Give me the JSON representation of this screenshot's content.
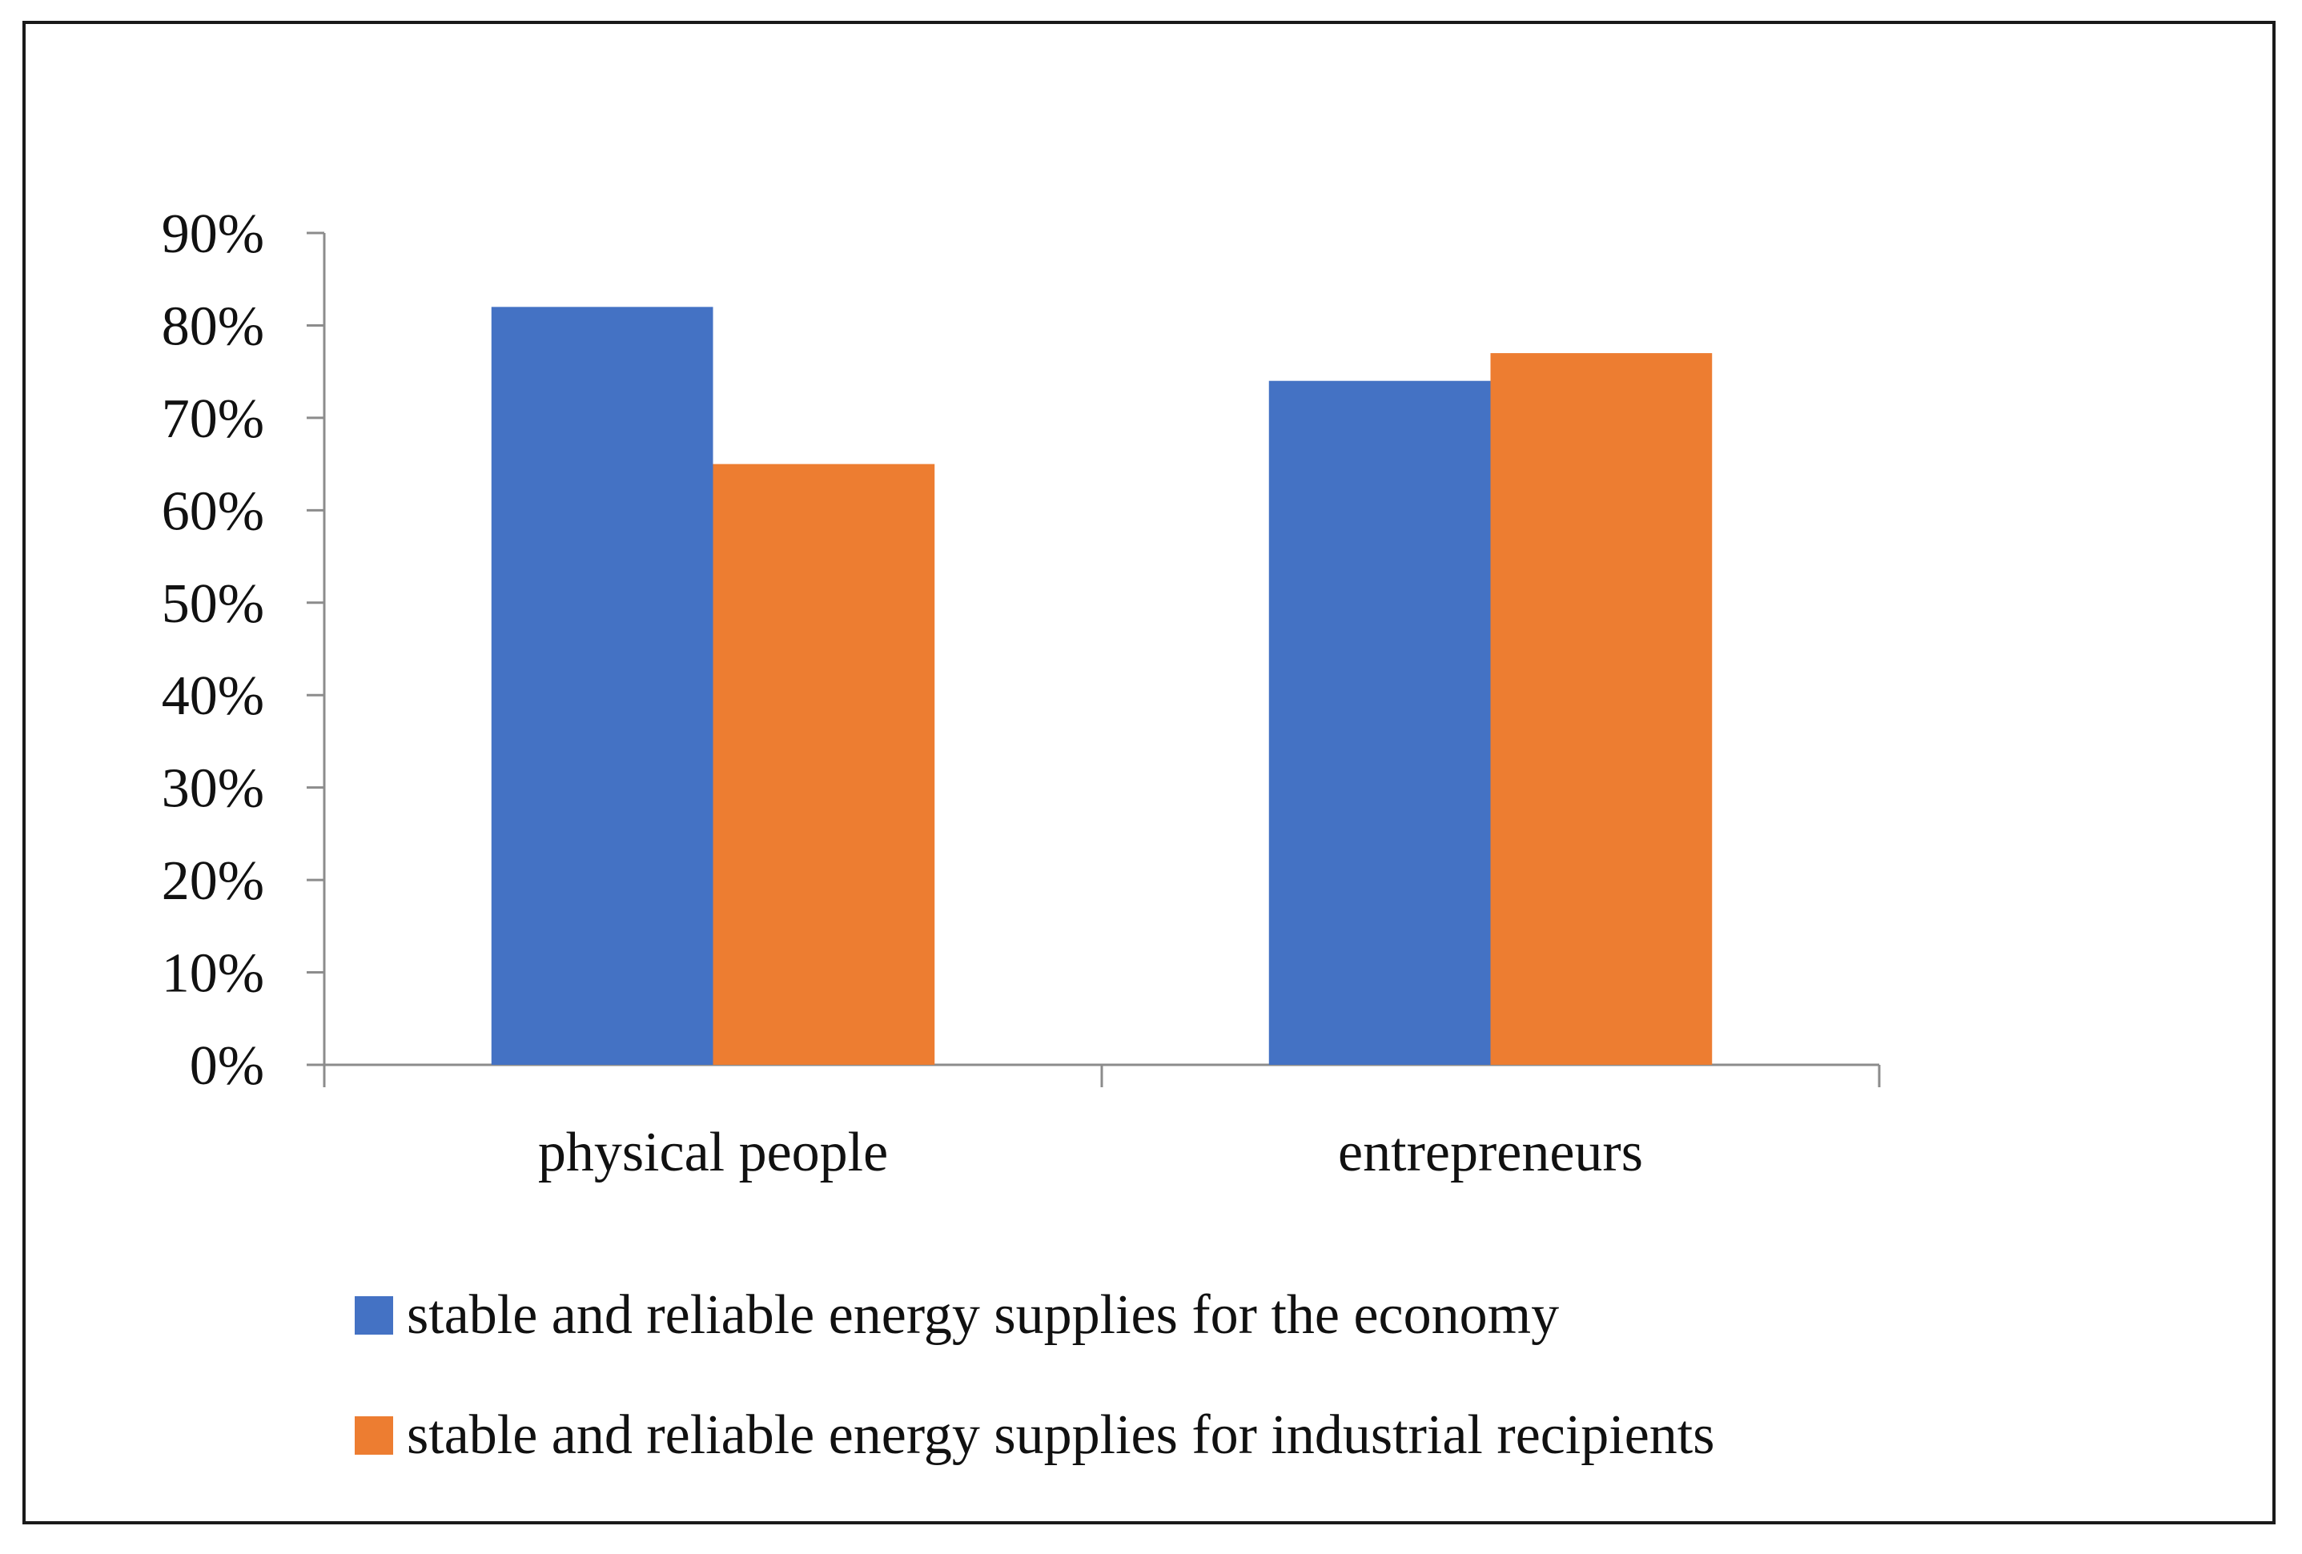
{
  "chart_data": {
    "type": "bar",
    "title": "",
    "xlabel": "",
    "ylabel": "",
    "categories": [
      "physical people",
      "entrepreneurs"
    ],
    "series": [
      {
        "name": "stable and reliable energy supplies for the economy",
        "color": "#4472C4",
        "values": [
          82,
          74
        ]
      },
      {
        "name": "stable and reliable energy supplies for industrial recipients",
        "color": "#ED7D31",
        "values": [
          65,
          77
        ]
      }
    ],
    "ylim": [
      0,
      90
    ],
    "yticks": [
      0,
      10,
      20,
      30,
      40,
      50,
      60,
      70,
      80,
      90
    ],
    "ytick_labels": [
      "0%",
      "10%",
      "20%",
      "30%",
      "40%",
      "50%",
      "60%",
      "70%",
      "80%",
      "90%"
    ],
    "grid": false,
    "legend_position": "bottom"
  }
}
